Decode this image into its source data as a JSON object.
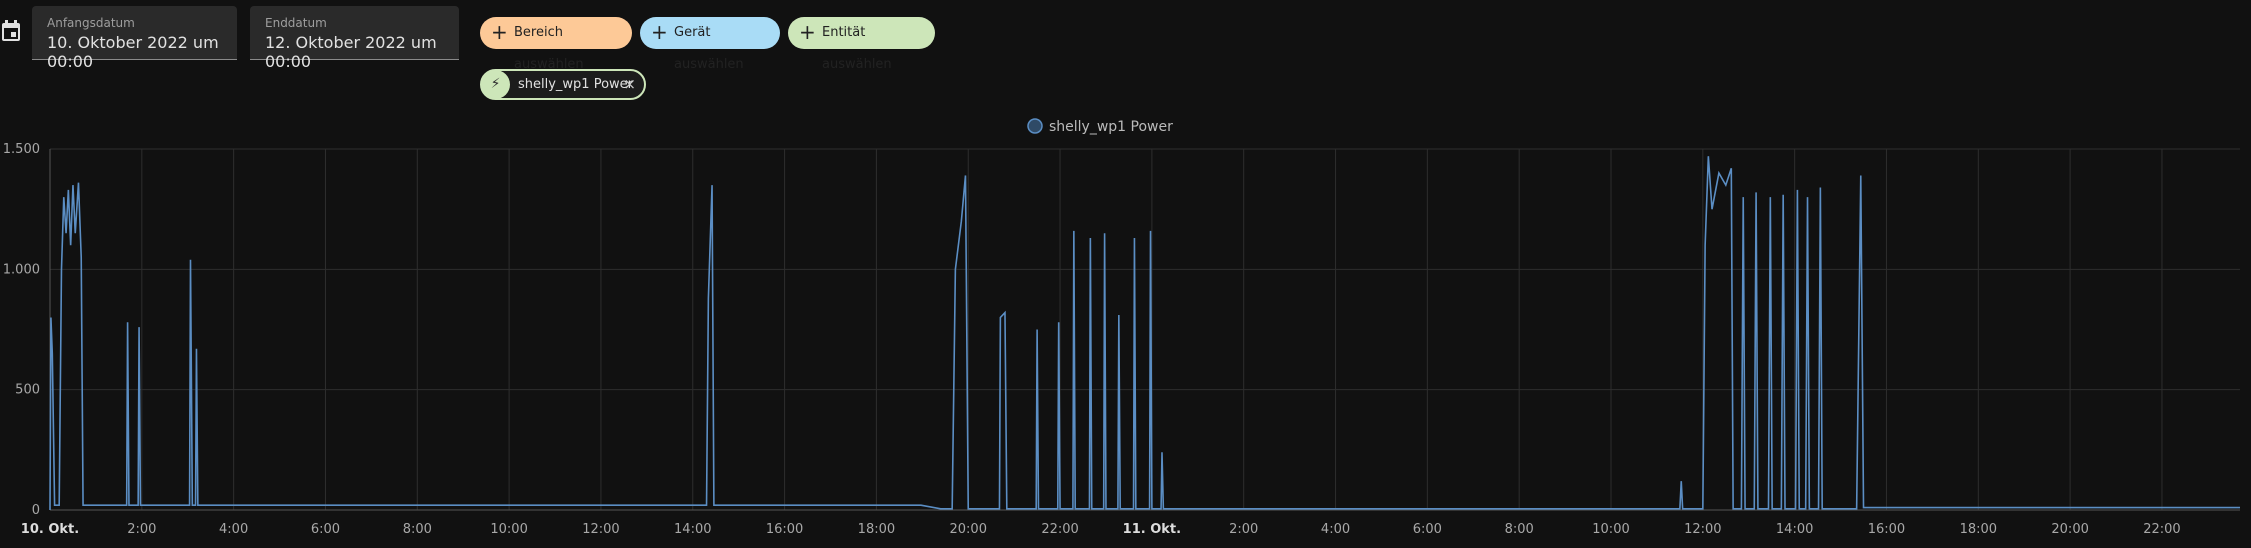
{
  "controls": {
    "start_label": "Anfangsdatum",
    "start_value": "10. Oktober 2022 um 00:00",
    "end_label": "Enddatum",
    "end_value": "12. Oktober 2022 um 00:00",
    "chips": [
      "Bereich auswählen",
      "Gerät auswählen",
      "Entität auswählen"
    ],
    "selected_entity": "shelly_wp1 Power"
  },
  "chart_data": {
    "type": "line",
    "grid": true,
    "x": [
      0,
      0.02,
      0.05,
      0.1,
      0.2,
      0.25,
      0.3,
      0.35,
      0.4,
      0.45,
      0.5,
      0.55,
      0.62,
      0.68,
      0.72,
      1.67,
      1.69,
      1.72,
      1.92,
      1.94,
      1.97,
      3.04,
      3.06,
      3.1,
      3.17,
      3.19,
      3.22,
      14.3,
      14.34,
      14.42,
      14.46,
      18.97,
      19.4,
      19.65,
      19.72,
      19.85,
      19.94,
      20.0,
      20.68,
      20.7,
      20.8,
      20.84,
      21.48,
      21.5,
      21.53,
      21.95,
      21.97,
      22.0,
      22.28,
      22.3,
      22.33,
      22.64,
      22.66,
      22.69,
      22.95,
      22.97,
      23.0,
      23.26,
      23.28,
      23.31,
      23.6,
      23.62,
      23.65,
      23.95,
      23.97,
      24.0,
      24.2,
      24.22,
      24.25,
      35.5,
      35.53,
      35.56,
      36.0,
      36.05,
      36.12,
      36.2,
      36.35,
      36.5,
      36.62,
      36.66,
      36.84,
      36.88,
      36.92,
      37.12,
      37.16,
      37.2,
      37.43,
      37.47,
      37.51,
      37.71,
      37.75,
      37.79,
      38.02,
      38.06,
      38.1,
      38.24,
      38.28,
      38.32,
      38.52,
      38.56,
      38.6,
      39.35,
      39.44,
      39.5,
      47.7
    ],
    "series": [
      {
        "name": "shelly_wp1 Power",
        "color": "#5b8ec4",
        "values": [
          0,
          800,
          650,
          20,
          20,
          1000,
          1300,
          1150,
          1330,
          1100,
          1350,
          1150,
          1360,
          1050,
          20,
          20,
          780,
          20,
          20,
          760,
          20,
          20,
          1040,
          20,
          20,
          670,
          20,
          20,
          880,
          1350,
          20,
          20,
          5,
          5,
          1000,
          1200,
          1390,
          5,
          5,
          800,
          820,
          5,
          5,
          750,
          5,
          5,
          780,
          5,
          5,
          1160,
          5,
          5,
          1130,
          5,
          5,
          1150,
          5,
          5,
          810,
          5,
          5,
          1130,
          5,
          5,
          1160,
          5,
          5,
          240,
          5,
          5,
          120,
          5,
          5,
          1100,
          1470,
          1250,
          1400,
          1350,
          1420,
          5,
          5,
          1300,
          5,
          5,
          1320,
          5,
          5,
          1300,
          5,
          5,
          1310,
          5,
          5,
          1330,
          5,
          5,
          1300,
          5,
          5,
          1340,
          5,
          5,
          1390,
          10,
          10
        ]
      }
    ],
    "xlim": [
      0,
      47.7
    ],
    "xticks": [
      {
        "value": 0,
        "label": "10. Okt."
      },
      {
        "value": 2,
        "label": "2:00"
      },
      {
        "value": 4,
        "label": "4:00"
      },
      {
        "value": 6,
        "label": "6:00"
      },
      {
        "value": 8,
        "label": "8:00"
      },
      {
        "value": 10,
        "label": "10:00"
      },
      {
        "value": 12,
        "label": "12:00"
      },
      {
        "value": 14,
        "label": "14:00"
      },
      {
        "value": 16,
        "label": "16:00"
      },
      {
        "value": 18,
        "label": "18:00"
      },
      {
        "value": 20,
        "label": "20:00"
      },
      {
        "value": 22,
        "label": "22:00"
      },
      {
        "value": 24,
        "label": "11. Okt."
      },
      {
        "value": 26,
        "label": "2:00"
      },
      {
        "value": 28,
        "label": "4:00"
      },
      {
        "value": 30,
        "label": "6:00"
      },
      {
        "value": 32,
        "label": "8:00"
      },
      {
        "value": 34,
        "label": "10:00"
      },
      {
        "value": 36,
        "label": "12:00"
      },
      {
        "value": 38,
        "label": "14:00"
      },
      {
        "value": 40,
        "label": "16:00"
      },
      {
        "value": 42,
        "label": "18:00"
      },
      {
        "value": 44,
        "label": "20:00"
      },
      {
        "value": 46,
        "label": "22:00"
      }
    ],
    "ylim": [
      0,
      1500
    ],
    "yticks": [
      0,
      500,
      {
        "value": 1000,
        "label": "1.000"
      },
      {
        "value": 1500,
        "label": "1.500"
      }
    ]
  }
}
